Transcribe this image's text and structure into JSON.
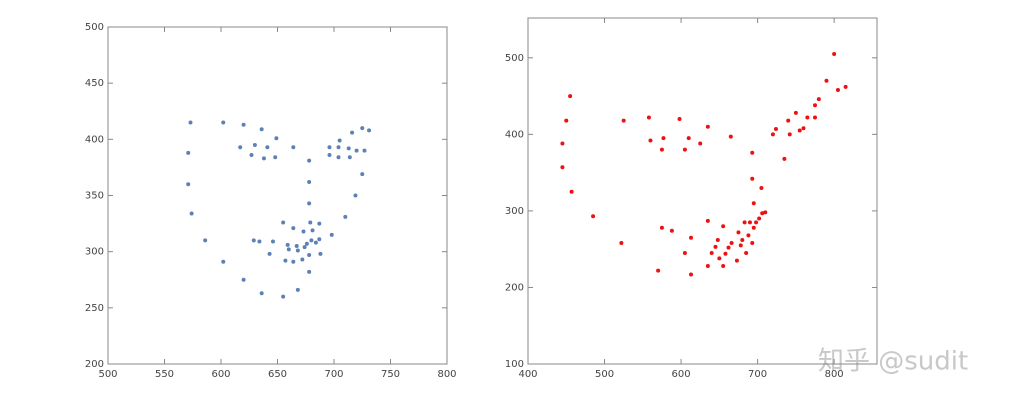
{
  "chart_data": [
    {
      "type": "scatter",
      "color": "#5e81b5",
      "xlim": [
        500,
        800
      ],
      "ylim": [
        200,
        500
      ],
      "xticks": [
        500,
        550,
        600,
        650,
        700,
        750,
        800
      ],
      "yticks": [
        200,
        250,
        300,
        350,
        400,
        450,
        500
      ],
      "x": [
        573,
        571,
        571,
        574,
        586,
        602,
        620,
        617,
        627,
        630,
        636,
        638,
        641,
        649,
        648,
        664,
        678,
        678,
        678,
        696,
        696,
        704,
        705,
        704,
        713,
        714,
        716,
        720,
        725,
        731,
        727,
        725,
        719,
        710,
        698,
        602,
        620,
        636,
        655,
        668,
        678,
        629,
        634,
        646,
        643,
        655,
        664,
        657,
        664,
        672,
        673,
        659,
        660,
        667,
        674,
        676,
        680,
        684,
        687,
        681,
        679,
        687,
        688,
        668,
        678
      ],
      "y": [
        415,
        388,
        360,
        334,
        310,
        415,
        413,
        393,
        386,
        395,
        409,
        383,
        393,
        401,
        384,
        393,
        381,
        362,
        343,
        386,
        393,
        393,
        399,
        384,
        392,
        384,
        406,
        390,
        410,
        408,
        390,
        369,
        350,
        331,
        315,
        291,
        275,
        263,
        260,
        266,
        282,
        310,
        309,
        309,
        298,
        326,
        321,
        292,
        291,
        293,
        318,
        306,
        302,
        305,
        304,
        307,
        310,
        308,
        311,
        319,
        326,
        325,
        298,
        301,
        297
      ]
    },
    {
      "type": "scatter",
      "color": "#ee1111",
      "xlim": [
        400,
        856
      ],
      "ylim": [
        100,
        552
      ],
      "xticks": [
        400,
        500,
        600,
        700,
        800
      ],
      "yticks": [
        100,
        200,
        300,
        400,
        500
      ],
      "x": [
        445,
        450,
        455,
        445,
        457,
        485,
        522,
        525,
        558,
        560,
        575,
        577,
        598,
        605,
        610,
        625,
        635,
        665,
        693,
        693,
        695,
        705,
        710,
        570,
        575,
        588,
        613,
        605,
        613,
        635,
        635,
        640,
        645,
        648,
        650,
        655,
        655,
        658,
        662,
        666,
        673,
        675,
        678,
        680,
        683,
        685,
        688,
        690,
        693,
        695,
        698,
        702,
        706,
        720,
        724,
        735,
        740,
        742,
        750,
        755,
        760,
        765,
        775,
        775,
        780,
        790,
        800,
        805,
        815
      ],
      "y": [
        388,
        418,
        450,
        357,
        325,
        293,
        258,
        418,
        422,
        392,
        380,
        395,
        420,
        380,
        395,
        388,
        410,
        397,
        376,
        342,
        310,
        330,
        298,
        222,
        278,
        274,
        265,
        245,
        217,
        287,
        228,
        245,
        253,
        262,
        238,
        228,
        280,
        244,
        252,
        258,
        235,
        272,
        255,
        262,
        285,
        245,
        268,
        285,
        258,
        278,
        285,
        290,
        297,
        400,
        407,
        368,
        418,
        400,
        428,
        405,
        408,
        422,
        438,
        422,
        446,
        470,
        505,
        458,
        462
      ]
    }
  ],
  "watermark": "知乎 @sudit"
}
